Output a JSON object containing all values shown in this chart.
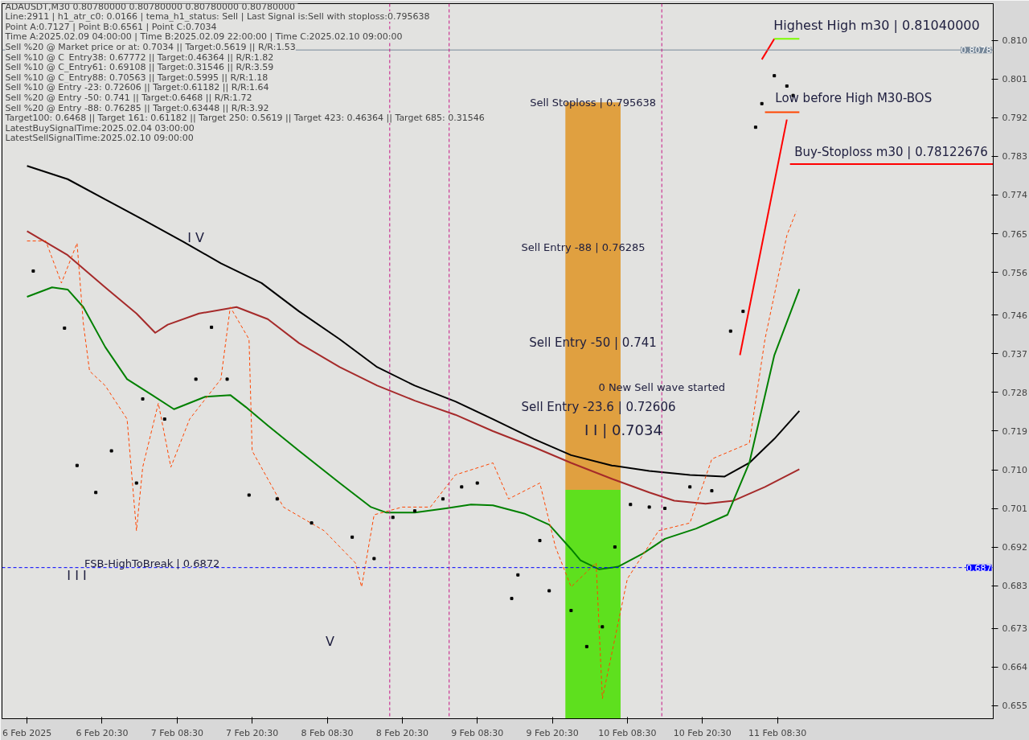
{
  "chart_data": {
    "type": "line",
    "title": "ADAUSDT,M30  0.80780000 0.80780000 0.80780000 0.80780000",
    "xlim": [
      "2025-02-06T04:30",
      "2025-02-12T19:00"
    ],
    "ylim": [
      0.652,
      0.8186
    ],
    "xticks": [
      {
        "value": "2025-02-06T08:30",
        "label": "6 Feb 2025"
      },
      {
        "value": "2025-02-06T20:30",
        "label": "6 Feb 20:30"
      },
      {
        "value": "2025-02-07T08:30",
        "label": "7 Feb 08:30"
      },
      {
        "value": "2025-02-07T20:30",
        "label": "7 Feb 20:30"
      },
      {
        "value": "2025-02-08T08:30",
        "label": "8 Feb 08:30"
      },
      {
        "value": "2025-02-08T20:30",
        "label": "8 Feb 20:30"
      },
      {
        "value": "2025-02-09T08:30",
        "label": "9 Feb 08:30"
      },
      {
        "value": "2025-02-09T20:30",
        "label": "9 Feb 20:30"
      },
      {
        "value": "2025-02-10T08:30",
        "label": "10 Feb 08:30"
      },
      {
        "value": "2025-02-10T20:30",
        "label": "10 Feb 20:30"
      },
      {
        "value": "2025-02-11T08:30",
        "label": "11 Feb 08:30"
      }
    ],
    "yticks": [
      {
        "value": 0.81,
        "label": "0.810"
      },
      0.801,
      0.792,
      0.783,
      0.774,
      0.765,
      0.756,
      0.746,
      0.737,
      0.728,
      0.719,
      {
        "value": 0.71,
        "label": "0.710"
      },
      0.701,
      0.692,
      0.683,
      0.673,
      0.664,
      0.655
    ],
    "grid": false,
    "series": [
      {
        "type": "bar",
        "color": "#5ee01e",
        "x": [
          "2025-02-10T03:00"
        ],
        "base": [
          0.652
        ],
        "values": [
          0.0533
        ]
      },
      {
        "type": "bar",
        "color": "#e0a040",
        "x": [
          "2025-02-10T03:00"
        ],
        "base": [
          0.7053
        ],
        "values": [
          0.0903
        ]
      },
      {
        "color": "#000000",
        "x": [
          "2025-02-06T08:30",
          "2025-02-06T15:00",
          "2025-02-06T21:00",
          "2025-02-07T03:00",
          "2025-02-07T09:30",
          "2025-02-07T15:30",
          "2025-02-07T22:00",
          "2025-02-08T04:00",
          "2025-02-08T10:30",
          "2025-02-08T16:30",
          "2025-02-08T22:30",
          "2025-02-09T05:00",
          "2025-02-09T11:00",
          "2025-02-09T17:30",
          "2025-02-09T23:30",
          "2025-02-10T06:00",
          "2025-02-10T12:00",
          "2025-02-10T18:30",
          "2025-02-11T00:00",
          "2025-02-11T04:00",
          "2025-02-11T08:00",
          "2025-02-11T12:00"
        ],
        "values": [
          0.7808,
          0.7777,
          0.773,
          0.7683,
          0.7631,
          0.7581,
          0.7535,
          0.7469,
          0.7404,
          0.7339,
          0.7296,
          0.7259,
          0.7218,
          0.7172,
          0.7134,
          0.711,
          0.7097,
          0.7088,
          0.7084,
          0.7116,
          0.7172,
          0.7237
        ]
      },
      {
        "color": "#a52a2a",
        "x": [
          "2025-02-06T08:30",
          "2025-02-06T15:00",
          "2025-02-06T21:00",
          "2025-02-07T02:00",
          "2025-02-07T05:00",
          "2025-02-07T07:00",
          "2025-02-07T12:00",
          "2025-02-07T18:00",
          "2025-02-07T23:00",
          "2025-02-08T04:00",
          "2025-02-08T10:30",
          "2025-02-08T16:30",
          "2025-02-08T22:30",
          "2025-02-09T05:00",
          "2025-02-09T11:00",
          "2025-02-09T17:30",
          "2025-02-09T23:30",
          "2025-02-10T06:00",
          "2025-02-10T12:00",
          "2025-02-10T16:00",
          "2025-02-10T21:00",
          "2025-02-11T01:30",
          "2025-02-11T06:30",
          "2025-02-11T12:00"
        ],
        "values": [
          0.7656,
          0.76,
          0.7525,
          0.7464,
          0.7419,
          0.7438,
          0.7464,
          0.7479,
          0.7451,
          0.7395,
          0.7339,
          0.7296,
          0.7261,
          0.7228,
          0.719,
          0.7153,
          0.7116,
          0.7079,
          0.7047,
          0.7028,
          0.7021,
          0.7028,
          0.706,
          0.7101
        ]
      },
      {
        "color": "#008000",
        "x": [
          "2025-02-06T08:30",
          "2025-02-06T12:30",
          "2025-02-06T15:00",
          "2025-02-06T17:30",
          "2025-02-06T21:00",
          "2025-02-07T00:30",
          "2025-02-07T04:30",
          "2025-02-07T08:00",
          "2025-02-07T13:00",
          "2025-02-07T17:00",
          "2025-02-07T19:30",
          "2025-02-07T23:00",
          "2025-02-08T04:00",
          "2025-02-08T10:30",
          "2025-02-08T15:30",
          "2025-02-08T18:00",
          "2025-02-08T22:30",
          "2025-02-09T03:30",
          "2025-02-09T07:30",
          "2025-02-09T11:00",
          "2025-02-09T16:00",
          "2025-02-09T20:00",
          "2025-02-09T23:30",
          "2025-02-10T01:00",
          "2025-02-10T04:00",
          "2025-02-10T07:00",
          "2025-02-10T11:00",
          "2025-02-10T14:30",
          "2025-02-10T19:30",
          "2025-02-11T00:30",
          "2025-02-11T04:00",
          "2025-02-11T08:00",
          "2025-02-11T12:00"
        ],
        "values": [
          0.7503,
          0.7525,
          0.752,
          0.7479,
          0.7386,
          0.7311,
          0.7274,
          0.7241,
          0.727,
          0.7274,
          0.7246,
          0.7203,
          0.7144,
          0.7069,
          0.7013,
          0.7,
          0.7,
          0.701,
          0.7019,
          0.7017,
          0.6998,
          0.6972,
          0.6915,
          0.6889,
          0.6868,
          0.6874,
          0.6905,
          0.6939,
          0.6963,
          0.6995,
          0.7116,
          0.7367,
          0.7521
        ]
      },
      {
        "color": "#ff4500",
        "line_style": "dashed",
        "x": [
          "2025-02-06T08:30",
          "2025-02-06T11:30",
          "2025-02-06T14:00",
          "2025-02-06T16:30",
          "2025-02-06T17:30",
          "2025-02-06T18:30",
          "2025-02-06T21:00",
          "2025-02-07T00:30",
          "2025-02-07T02:00",
          "2025-02-07T03:00",
          "2025-02-07T05:30",
          "2025-02-07T07:30",
          "2025-02-07T10:30",
          "2025-02-07T15:30",
          "2025-02-07T17:00",
          "2025-02-07T20:00",
          "2025-02-07T20:30",
          "2025-02-08T01:30",
          "2025-02-08T08:00",
          "2025-02-08T13:00",
          "2025-02-08T14:00",
          "2025-02-08T16:00",
          "2025-02-08T20:30",
          "2025-02-09T01:00",
          "2025-02-09T05:00",
          "2025-02-09T11:00",
          "2025-02-09T13:30",
          "2025-02-09T18:30",
          "2025-02-09T21:00",
          "2025-02-09T23:30",
          "2025-02-10T03:30",
          "2025-02-10T04:30",
          "2025-02-10T08:30",
          "2025-02-10T13:30",
          "2025-02-10T18:30",
          "2025-02-10T22:00",
          "2025-02-11T04:00",
          "2025-02-11T06:30",
          "2025-02-11T10:00",
          "2025-02-11T11:30"
        ],
        "values": [
          0.7633,
          0.7633,
          0.7535,
          0.7628,
          0.7441,
          0.733,
          0.7296,
          0.7218,
          0.6958,
          0.7106,
          0.7255,
          0.7106,
          0.7218,
          0.7311,
          0.7479,
          0.7404,
          0.7144,
          0.7013,
          0.6958,
          0.6883,
          0.6827,
          0.6995,
          0.7013,
          0.7013,
          0.7088,
          0.7116,
          0.7032,
          0.7069,
          0.692,
          0.6827,
          0.6883,
          0.6567,
          0.6846,
          0.6958,
          0.6976,
          0.7125,
          0.7162,
          0.7404,
          0.7646,
          0.7702
        ]
      },
      {
        "type": "scatter",
        "color": "#000000",
        "marker": "square",
        "x": [
          "2025-02-06T09:30",
          "2025-02-06T14:30",
          "2025-02-06T16:30",
          "2025-02-06T19:30",
          "2025-02-06T22:00",
          "2025-02-07T02:00",
          "2025-02-07T03:00",
          "2025-02-07T06:30",
          "2025-02-07T11:30",
          "2025-02-07T14:00",
          "2025-02-07T16:30",
          "2025-02-07T20:00",
          "2025-02-08T00:30",
          "2025-02-08T06:00",
          "2025-02-08T12:30",
          "2025-02-08T16:00",
          "2025-02-08T19:00",
          "2025-02-08T22:30",
          "2025-02-09T03:00",
          "2025-02-09T06:00",
          "2025-02-09T08:30",
          "2025-02-09T14:00",
          "2025-02-09T15:00",
          "2025-02-09T18:30",
          "2025-02-09T20:00",
          "2025-02-09T23:30",
          "2025-02-10T02:00",
          "2025-02-10T04:30",
          "2025-02-10T06:30",
          "2025-02-10T09:00",
          "2025-02-10T12:00",
          "2025-02-10T14:30",
          "2025-02-10T18:30",
          "2025-02-10T22:00",
          "2025-02-11T01:00",
          "2025-02-11T03:00",
          "2025-02-11T05:00",
          "2025-02-11T06:00",
          "2025-02-11T08:00",
          "2025-02-11T10:00",
          "2025-02-11T11:00"
        ],
        "values": [
          0.7563,
          0.743,
          0.711,
          0.7047,
          0.7144,
          0.7069,
          0.7265,
          0.7218,
          0.7311,
          0.7432,
          0.7311,
          0.7041,
          0.7032,
          0.6976,
          0.6943,
          0.6893,
          0.6989,
          0.7004,
          0.7032,
          0.706,
          0.7069,
          0.68,
          0.6855,
          0.6935,
          0.6818,
          0.6772,
          0.6688,
          0.6734,
          0.692,
          0.7019,
          0.7013,
          0.701,
          0.706,
          0.7051,
          0.7423,
          0.7469,
          0.7898,
          0.7953,
          0.8018,
          0.7994,
          0.7972
        ]
      },
      {
        "color": "#ff0000",
        "x": [
          "2025-02-11T02:30",
          "2025-02-11T10:00"
        ],
        "values": [
          0.7367,
          0.7916
        ]
      },
      {
        "color": "#ff0000",
        "x": [
          "2025-02-11T06:00",
          "2025-02-11T08:00"
        ],
        "values": [
          0.8056,
          0.8104
        ]
      },
      {
        "color": "#7cfc00",
        "x": [
          "2025-02-11T08:00",
          "2025-02-11T12:00"
        ],
        "values": [
          0.8104,
          0.8104
        ]
      },
      {
        "color": "#ff4500",
        "x": [
          "2025-02-11T06:30",
          "2025-02-11T12:00"
        ],
        "values": [
          0.7933,
          0.7933
        ]
      },
      {
        "color": "#ff0000",
        "x": [
          "2025-02-11T10:30",
          "2025-02-12T19:00"
        ],
        "values": [
          0.7812,
          0.7812
        ]
      }
    ],
    "ref_lines": [
      {
        "axis": "y",
        "value": 0.6872,
        "label": "0.687",
        "color": "#0000ff",
        "line_style": "dashed"
      },
      {
        "axis": "y",
        "value": 0.8078,
        "label": "0.8078",
        "color": "#778899",
        "line_style": "solid"
      },
      {
        "axis": "x",
        "value": "2025-02-08T18:30",
        "color": "#c71585",
        "line_style": "dashed"
      },
      {
        "axis": "x",
        "value": "2025-02-09T04:00",
        "color": "#c71585",
        "line_style": "dashed"
      },
      {
        "axis": "x",
        "value": "2025-02-10T14:00",
        "color": "#c71585",
        "line_style": "dashed"
      }
    ],
    "annotations": [
      "Line:2911 | h1_atr_c0: 0.0166 | tema_h1_status: Sell | Last Signal is:Sell with stoploss:0.795638",
      "Point A:0.7127 | Point B:0.6561 | Point C:0.7034",
      "Time A:2025.02.09 04:00:00 | Time B:2025.02.09 22:00:00 | Time C:2025.02.10 09:00:00",
      "Sell %20 @ Market price or at: 0.7034 || Target:0.5619 || R/R:1.53",
      "Sell %10 @ C_Entry38: 0.67772 || Target:0.46364 || R/R:1.82",
      "Sell %10 @ C_Entry61: 0.69108 || Target:0.31546 || R/R:3.59",
      "Sell %10 @ C_Entry88: 0.70563 || Target:0.5995 || R/R:1.18",
      "Sell %10 @ Entry -23: 0.72606 || Target:0.61182 || R/R:1.64",
      "Sell %20 @ Entry -50: 0.741 || Target:0.6468 || R/R:1.72",
      "Sell %20 @ Entry -88: 0.76285 || Target:0.63448 || R/R:3.92",
      "Target100: 0.6468 || Target 161: 0.61182 || Target 250: 0.5619 || Target 423: 0.46364 || Target 685: 0.31546",
      "LatestBuySignalTime:2025.02.04 03:00:00",
      "LatestSellSignalTime:2025.02.10 09:00:00",
      "I V",
      "I I I",
      "V",
      "I I | 0.7034",
      "Sell Entry -88 | 0.76285",
      "Sell Entry -50 | 0.741",
      "Sell Entry -23.6 | 0.72606",
      "Highest High m30 | 0.81040000",
      "Low before High   M30-BOS",
      "Buy-Stoploss m30 | 0.78122676",
      {
        "text": "Sell Stoploss | 0.795638",
        "x": "2025-02-10T03:00",
        "y": 0.7956
      },
      {
        "text": "0 New Sell wave started",
        "x": "2025-02-10T14:00",
        "y": 0.7293
      },
      {
        "text": "FSB-HighToBreak | 0.6872",
        "x": "2025-02-07T04:30",
        "y": 0.6881
      }
    ]
  }
}
